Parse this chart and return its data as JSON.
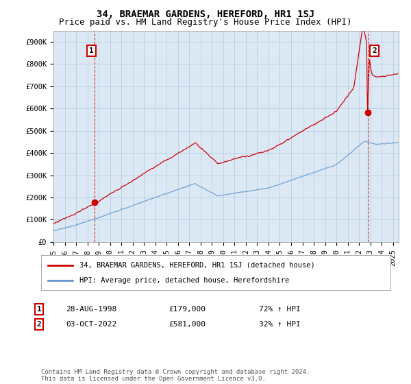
{
  "title": "34, BRAEMAR GARDENS, HEREFORD, HR1 1SJ",
  "subtitle": "Price paid vs. HM Land Registry's House Price Index (HPI)",
  "background_color": "#ffffff",
  "plot_bg_color": "#dce9f5",
  "grid_color": "#b0c8e0",
  "hpi_color": "#6699cc",
  "price_color": "#cc0000",
  "ylim": [
    0,
    950000
  ],
  "yticks": [
    0,
    100000,
    200000,
    300000,
    400000,
    500000,
    600000,
    700000,
    800000,
    900000
  ],
  "ytick_labels": [
    "£0",
    "£100K",
    "£200K",
    "£300K",
    "£400K",
    "£500K",
    "£600K",
    "£700K",
    "£800K",
    "£900K"
  ],
  "xlim_start": 1995.0,
  "xlim_end": 2025.5,
  "sale1_t": 1998.65,
  "sale1_price": 179000,
  "sale2_t": 2022.75,
  "sale2_price": 581000,
  "legend_line1": "34, BRAEMAR GARDENS, HEREFORD, HR1 1SJ (detached house)",
  "legend_line2": "HPI: Average price, detached house, Herefordshire",
  "annotation1_date": "28-AUG-1998",
  "annotation1_price": "£179,000",
  "annotation1_hpi": "72% ↑ HPI",
  "annotation2_date": "03-OCT-2022",
  "annotation2_price": "£581,000",
  "annotation2_hpi": "32% ↑ HPI",
  "footer": "Contains HM Land Registry data © Crown copyright and database right 2024.\nThis data is licensed under the Open Government Licence v3.0.",
  "title_fontsize": 10,
  "subtitle_fontsize": 9,
  "tick_fontsize": 7.5,
  "legend_fontsize": 7.5,
  "annot_fontsize": 8,
  "footer_fontsize": 6.5
}
